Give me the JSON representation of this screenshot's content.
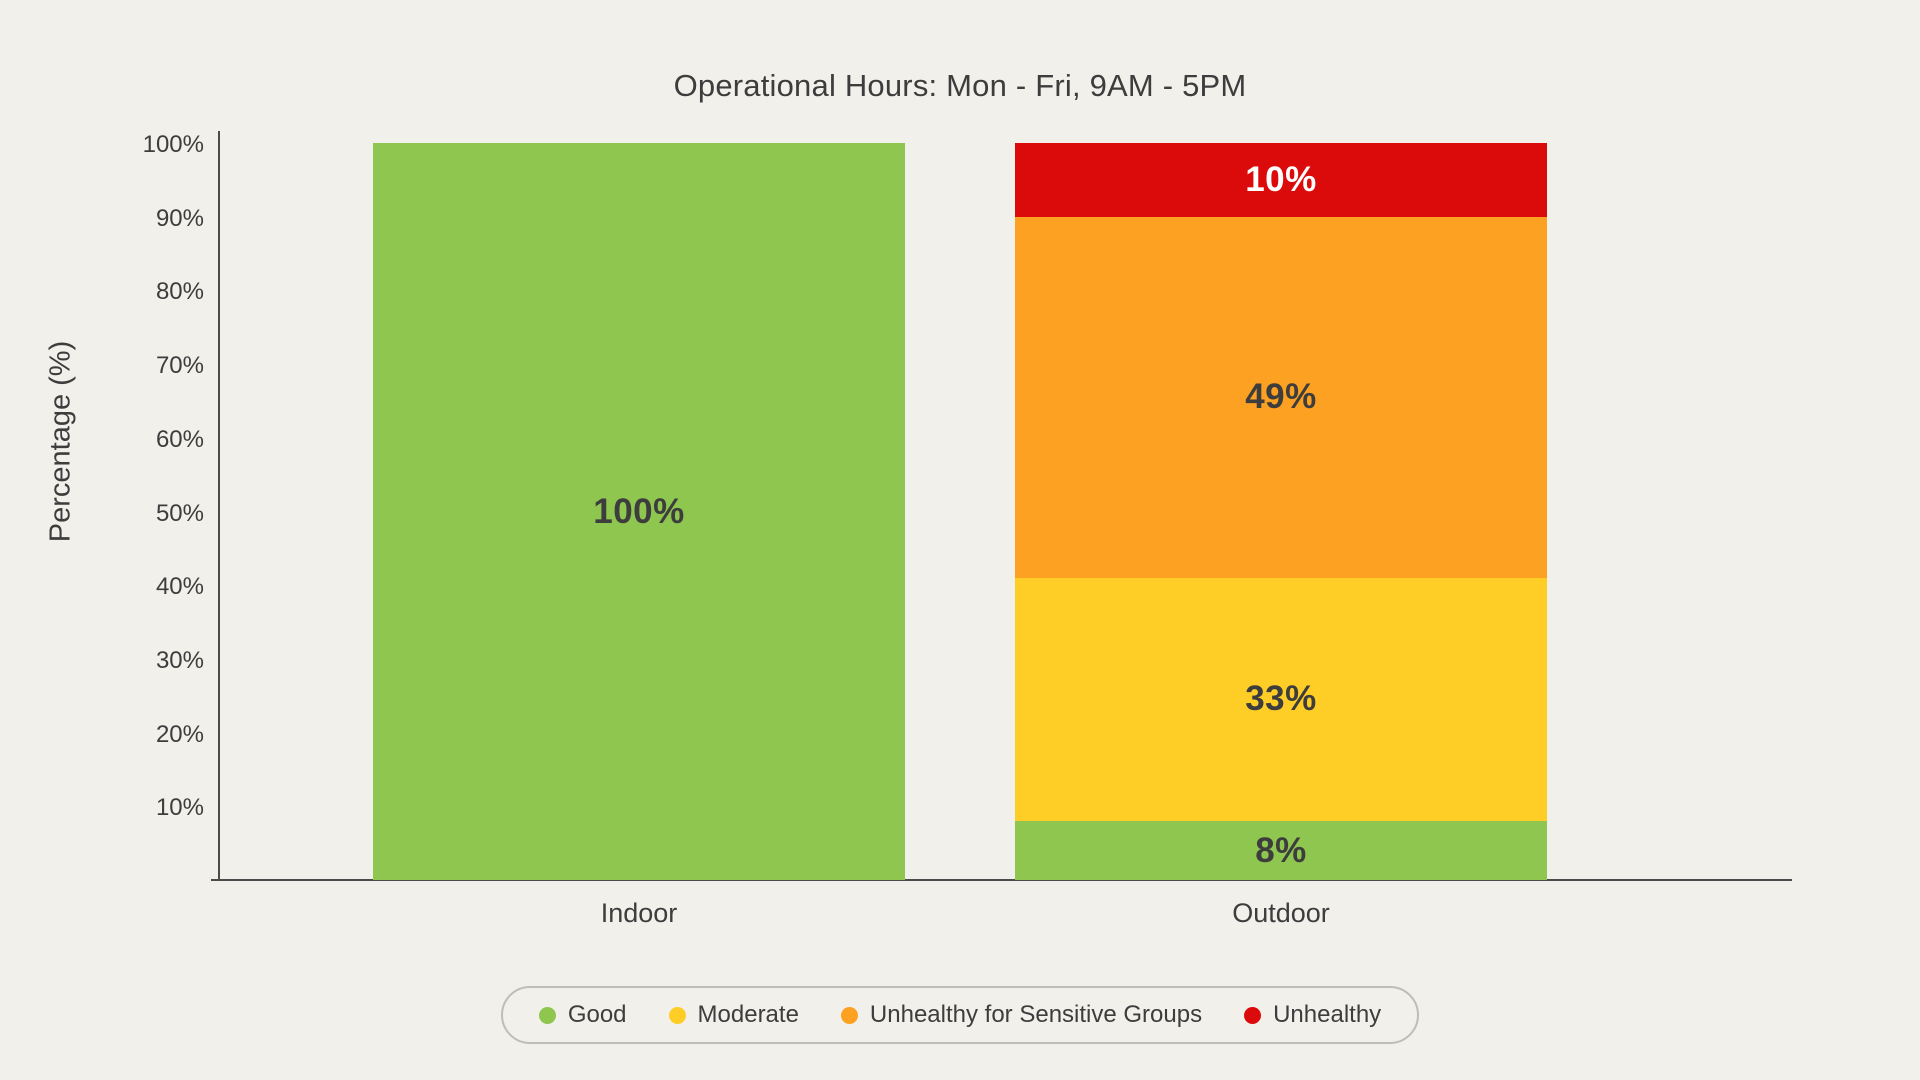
{
  "title": "Operational Hours: Mon - Fri, 9AM - 5PM",
  "y_axis": {
    "label": "Percentage (%)",
    "tick_values": [
      100,
      90,
      80,
      70,
      60,
      50,
      40,
      30,
      20,
      10
    ],
    "tick_suffix": "%"
  },
  "x_axis": {
    "categories": [
      "Indoor",
      "Outdoor"
    ]
  },
  "chart_data": {
    "type": "bar",
    "stacked": true,
    "title": "Operational Hours: Mon - Fri, 9AM - 5PM",
    "categories": [
      "Indoor",
      "Outdoor"
    ],
    "series": [
      {
        "name": "Good",
        "color": "#8EC650",
        "label_color": "#3D3D3D",
        "values": [
          100,
          8
        ]
      },
      {
        "name": "Moderate",
        "color": "#FFCE26",
        "label_color": "#3D3D3D",
        "values": [
          0,
          33
        ]
      },
      {
        "name": "Unhealthy for Sensitive Groups",
        "color": "#FCA122",
        "label_color": "#3D3D3D",
        "values": [
          0,
          49
        ]
      },
      {
        "name": "Unhealthy",
        "color": "#DC0B0B",
        "label_color": "#FFFFFF",
        "values": [
          0,
          10
        ]
      }
    ],
    "value_label_suffix": "%",
    "xlabel": "",
    "ylabel": "Percentage (%)",
    "ylim": [
      0,
      100
    ],
    "y_tick_step": 10,
    "grid": false,
    "legend_position": "bottom"
  },
  "legend": {
    "items": [
      {
        "label": "Good",
        "color": "#8EC650"
      },
      {
        "label": "Moderate",
        "color": "#FFCE26"
      },
      {
        "label": "Unhealthy for Sensitive Groups",
        "color": "#FCA122"
      },
      {
        "label": "Unhealthy",
        "color": "#DC0B0B"
      }
    ]
  },
  "colors": {
    "background": "#F2F0EB",
    "text": "#3D3D3D",
    "axis": "#4B4B4B",
    "label_on_dark": "#FFFFFF"
  }
}
